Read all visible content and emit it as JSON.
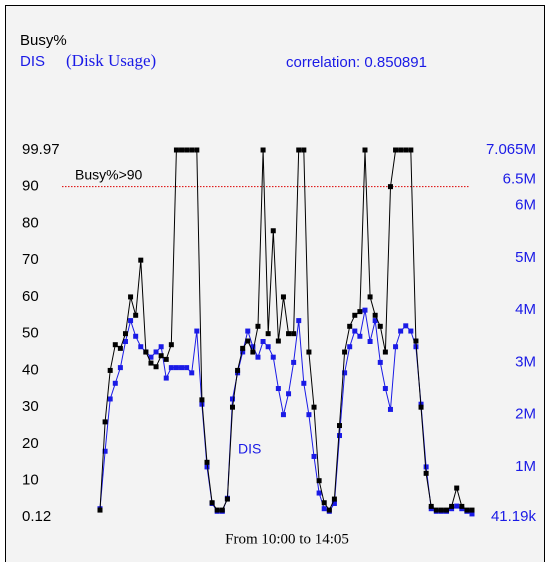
{
  "chart_data": {
    "type": "line",
    "title": "Busy%",
    "subtitle": "(Disk Usage)",
    "xlabel": "From 10:00 to 14:05",
    "annotations": [
      {
        "text": "correlation: 0.850891",
        "color": "#1a1ae6"
      },
      {
        "text": "DIS",
        "color": "#1a1ae6"
      }
    ],
    "reference_line": {
      "value": 90,
      "label": "Busy%>90",
      "color": "#dd0000",
      "axis": "y"
    },
    "ylim": [
      0.12,
      99.97
    ],
    "yticks": [
      0.12,
      10,
      20,
      30,
      40,
      50,
      60,
      70,
      80,
      90,
      99.97
    ],
    "y2lim": [
      41190,
      7065000
    ],
    "y2ticks": [
      {
        "value": 41190,
        "label": "41.19k"
      },
      {
        "value": 1000000,
        "label": "1M"
      },
      {
        "value": 2000000,
        "label": "2M"
      },
      {
        "value": 3000000,
        "label": "3M"
      },
      {
        "value": 4000000,
        "label": "4M"
      },
      {
        "value": 5000000,
        "label": "5M"
      },
      {
        "value": 6000000,
        "label": "6M"
      },
      {
        "value": 6500000,
        "label": "6.5M"
      },
      {
        "value": 7065000,
        "label": "7.065M"
      }
    ],
    "series": [
      {
        "name": "Busy%",
        "color": "#000000",
        "values": [
          2,
          26,
          40,
          47,
          46,
          50,
          60,
          55,
          70,
          45,
          42,
          41,
          44,
          43,
          47,
          99.97,
          99.97,
          99.97,
          99.97,
          99.97,
          32,
          15,
          4,
          2,
          2,
          5,
          30,
          40,
          46,
          48,
          45,
          52,
          99.97,
          50,
          78,
          48,
          60,
          50,
          50,
          99.97,
          99.97,
          45,
          30,
          10,
          4,
          2,
          5,
          25,
          45,
          52,
          55,
          56,
          99.97,
          60,
          55,
          52,
          45,
          90,
          99.97,
          99.97,
          99.97,
          99.97,
          48,
          30,
          12,
          3,
          2,
          2,
          2,
          3,
          8,
          3,
          2,
          2
        ]
      },
      {
        "name": "DIS",
        "color": "#1a1ae6",
        "axis": "y2",
        "values": [
          200000,
          1300000,
          2300000,
          2600000,
          2900000,
          3400000,
          3800000,
          3500000,
          3300000,
          3200000,
          3100000,
          3200000,
          3300000,
          2700000,
          2900000,
          2900000,
          2900000,
          2900000,
          2800000,
          3600000,
          2200000,
          1000000,
          300000,
          150000,
          150000,
          400000,
          2300000,
          2800000,
          3200000,
          3600000,
          3300000,
          3100000,
          3400000,
          3300000,
          3100000,
          2500000,
          2000000,
          2400000,
          3000000,
          3800000,
          2600000,
          2000000,
          1200000,
          500000,
          200000,
          150000,
          300000,
          1600000,
          2800000,
          3300000,
          3600000,
          3500000,
          4000000,
          3400000,
          3800000,
          3000000,
          2500000,
          2100000,
          3300000,
          3600000,
          3700000,
          3600000,
          3300000,
          2200000,
          1000000,
          200000,
          150000,
          150000,
          150000,
          200000,
          250000,
          200000,
          150000,
          100000
        ]
      }
    ]
  }
}
